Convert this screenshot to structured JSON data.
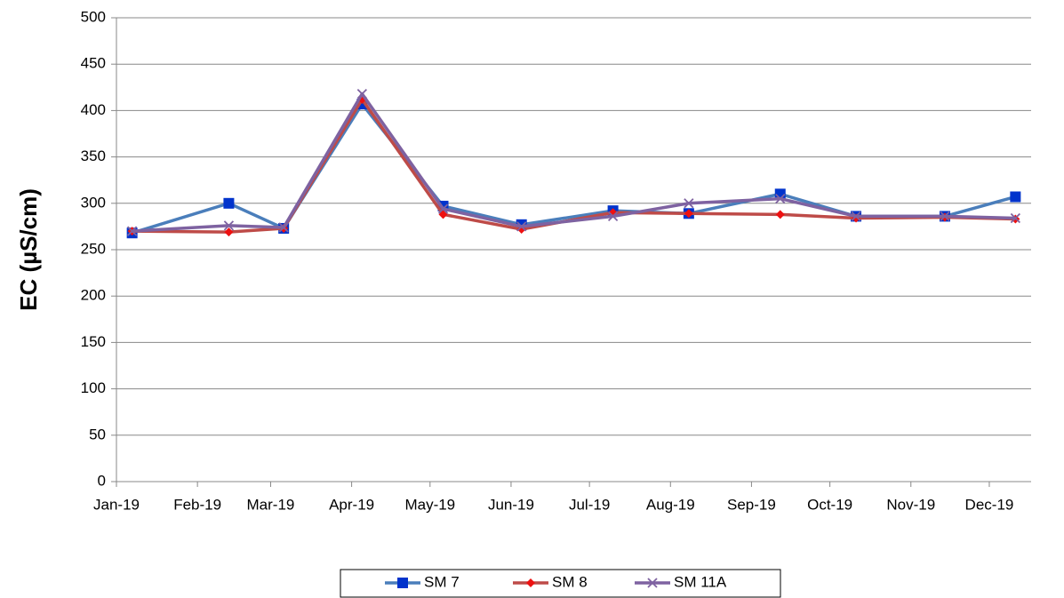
{
  "chart_data": {
    "type": "line",
    "ylabel": "EC (µS/cm)",
    "x": [
      6,
      43,
      64,
      94,
      125,
      155,
      190,
      219,
      254,
      283,
      317,
      344
    ],
    "xlim": [
      0,
      350
    ],
    "xticks": [
      {
        "value": 0,
        "label": "Jan-19"
      },
      {
        "value": 31,
        "label": "Feb-19"
      },
      {
        "value": 59,
        "label": "Mar-19"
      },
      {
        "value": 90,
        "label": "Apr-19"
      },
      {
        "value": 120,
        "label": "May-19"
      },
      {
        "value": 151,
        "label": "Jun-19"
      },
      {
        "value": 181,
        "label": "Jul-19"
      },
      {
        "value": 212,
        "label": "Aug-19"
      },
      {
        "value": 243,
        "label": "Sep-19"
      },
      {
        "value": 273,
        "label": "Oct-19"
      },
      {
        "value": 304,
        "label": "Nov-19"
      },
      {
        "value": 334,
        "label": "Dec-19"
      }
    ],
    "ylim": [
      0,
      500
    ],
    "yticks": [
      0,
      50,
      100,
      150,
      200,
      250,
      300,
      350,
      400,
      450,
      500
    ],
    "grid": true,
    "legend": "bottom",
    "series": [
      {
        "name": "SM 7",
        "color": "#4a7ebb",
        "marker": "square",
        "marker_color": "#0033cc",
        "values": [
          268,
          300,
          273,
          407,
          297,
          277,
          292,
          289,
          310,
          286,
          286,
          307
        ]
      },
      {
        "name": "SM 8",
        "color": "#be4b48",
        "marker": "diamond",
        "marker_color": "#ee1111",
        "values": [
          270,
          269,
          273,
          412,
          288,
          272,
          290,
          289,
          288,
          284,
          285,
          283
        ]
      },
      {
        "name": "SM 11A",
        "color": "#7e62a1",
        "marker": "x",
        "marker_color": "#7e62a1",
        "values": [
          270,
          276,
          274,
          418,
          294,
          275,
          286,
          300,
          305,
          286,
          286,
          284
        ]
      }
    ]
  }
}
